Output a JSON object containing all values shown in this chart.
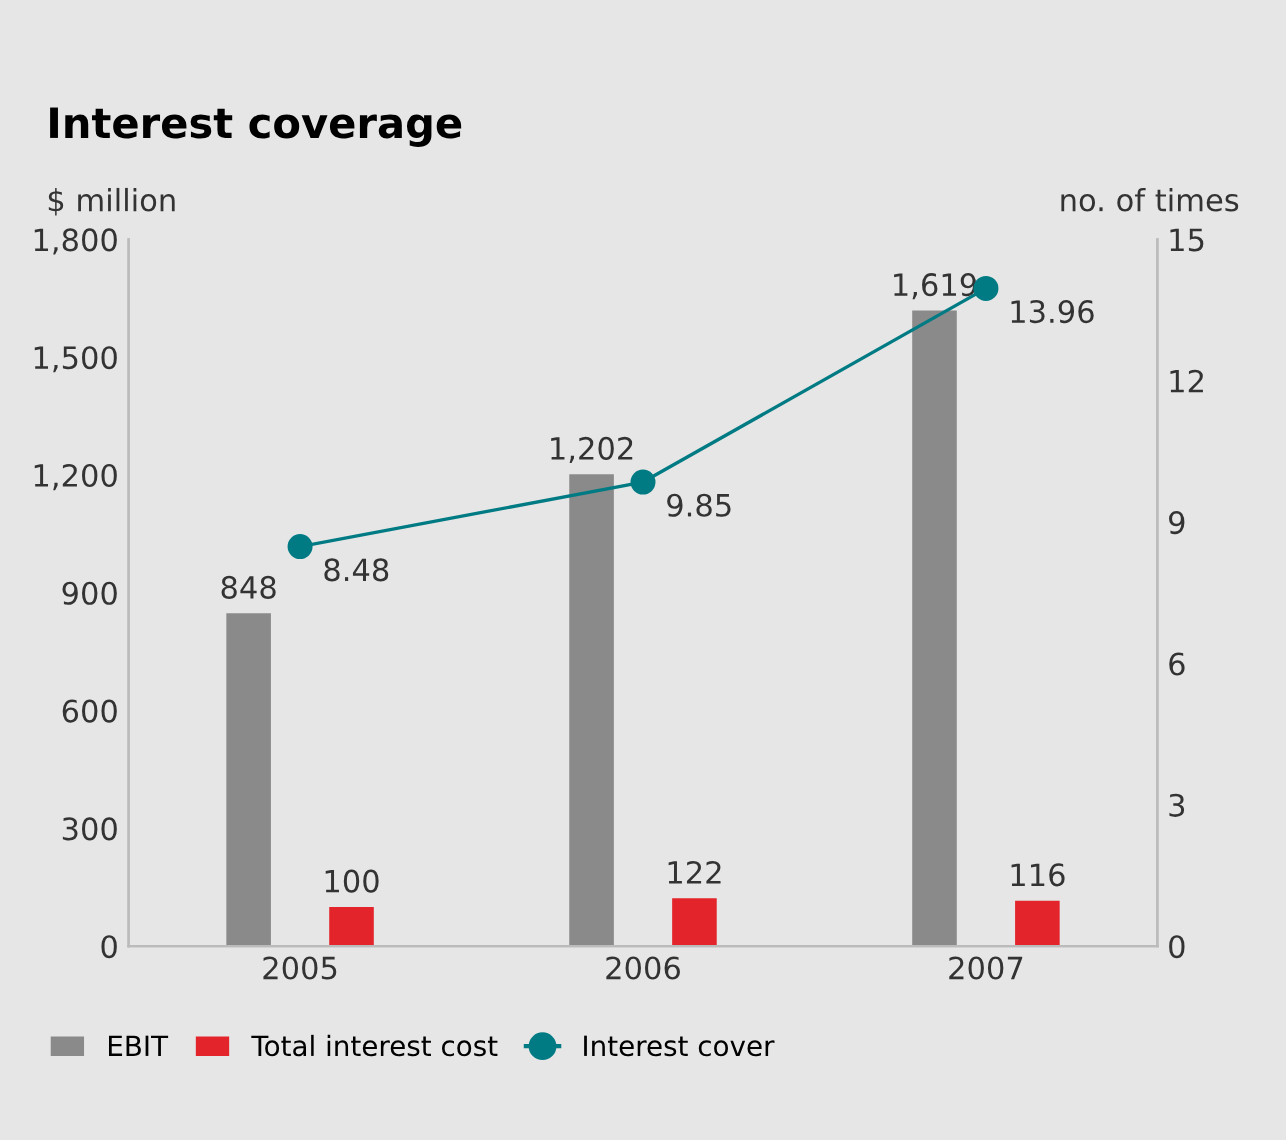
{
  "chart_data": {
    "type": "bar",
    "title": "Interest coverage",
    "ylabel": "$ million",
    "y2label": "no. of times",
    "categories": [
      "2005",
      "2006",
      "2007"
    ],
    "series": [
      {
        "name": "EBIT",
        "type": "bar",
        "color": "#8a8a8a",
        "values": [
          848,
          1202,
          1619
        ],
        "value_labels": [
          "848",
          "1,202",
          "1,619"
        ]
      },
      {
        "name": "Total interest cost",
        "type": "bar",
        "color": "#e3242b",
        "values": [
          100,
          122,
          116
        ],
        "value_labels": [
          "100",
          "122",
          "116"
        ]
      },
      {
        "name": "Interest cover",
        "type": "line",
        "axis": "y2",
        "color": "#007b84",
        "marker": "circle",
        "values": [
          8.48,
          9.85,
          13.96
        ],
        "value_labels": [
          "8.48",
          "9.85",
          "13.96"
        ]
      }
    ],
    "ylim": [
      0,
      1800
    ],
    "yticks": [
      0,
      300,
      600,
      900,
      {
        "value": 1200,
        "label": "1,200"
      },
      {
        "value": 1500,
        "label": "1,500"
      },
      {
        "value": 1800,
        "label": "1,800"
      }
    ],
    "y2lim": [
      0,
      15
    ],
    "y2ticks": [
      0,
      3,
      6,
      9,
      12,
      15
    ],
    "grid": false,
    "legend": "bottom left"
  }
}
